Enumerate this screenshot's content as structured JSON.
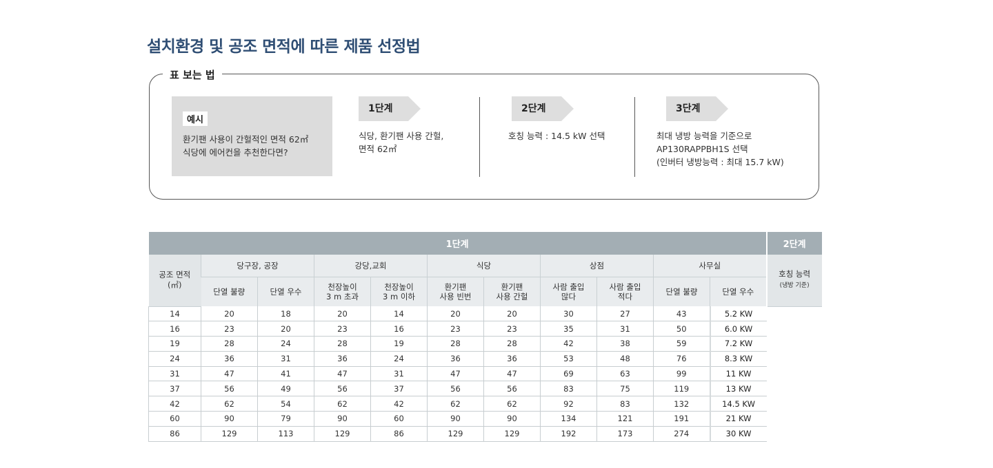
{
  "title": "설치환경 및 공조 면적에 따른 제품 선정법",
  "guide": {
    "label": "표 보는 법",
    "example_tag": "예시",
    "example_text": "환기팬 사용이 간헐적인 면적 62㎡\n식당에 에어컨을 추천한다면?",
    "steps": [
      {
        "tag": "1단계",
        "text": "식당, 환기팬 사용 간헐,\n면적 62㎡"
      },
      {
        "tag": "2단계",
        "text": "호칭 능력 : 14.5 kW 선택"
      },
      {
        "tag": "3단계",
        "text": "최대 냉방 능력을 기준으로\nAP130RAPPBH1S 선택\n(인버터 냉방능력 : 최대 15.7 kW)"
      }
    ]
  },
  "table": {
    "stage1_label": "1단계",
    "stage2_label": "2단계",
    "row_header": "공조 면적\n(㎡)",
    "groups": [
      "당구장, 공장",
      "강당,교회",
      "식당",
      "상점",
      "사무실"
    ],
    "subheaders": [
      "단열 불량",
      "단열 우수",
      "천장높이\n3 m 초과",
      "천장높이\n3 m 이하",
      "환기팬\n사용 빈번",
      "환기팬\n사용 간헐",
      "사람 출입\n많다",
      "사람 출입\n적다",
      "단열 불량",
      "단열 우수"
    ],
    "capacity_header": "호칭 능력",
    "capacity_sub": "(냉방 기준)",
    "rows": [
      {
        "v": [
          "14",
          "20",
          "18",
          "20",
          "14",
          "20",
          "20",
          "30",
          "27",
          "43"
        ],
        "kw": "5.2 KW"
      },
      {
        "v": [
          "16",
          "23",
          "20",
          "23",
          "16",
          "23",
          "23",
          "35",
          "31",
          "50"
        ],
        "kw": "6.0 KW"
      },
      {
        "v": [
          "19",
          "28",
          "24",
          "28",
          "19",
          "28",
          "28",
          "42",
          "38",
          "59"
        ],
        "kw": "7.2 KW"
      },
      {
        "v": [
          "24",
          "36",
          "31",
          "36",
          "24",
          "36",
          "36",
          "53",
          "48",
          "76"
        ],
        "kw": "8.3 KW"
      },
      {
        "v": [
          "31",
          "47",
          "41",
          "47",
          "31",
          "47",
          "47",
          "69",
          "63",
          "99"
        ],
        "kw": "11 KW"
      },
      {
        "v": [
          "37",
          "56",
          "49",
          "56",
          "37",
          "56",
          "56",
          "83",
          "75",
          "119"
        ],
        "kw": "13 KW"
      },
      {
        "v": [
          "42",
          "62",
          "54",
          "62",
          "42",
          "62",
          "62",
          "92",
          "83",
          "132"
        ],
        "kw": "14.5 KW"
      },
      {
        "v": [
          "60",
          "90",
          "79",
          "90",
          "60",
          "90",
          "90",
          "134",
          "121",
          "191"
        ],
        "kw": "21 KW"
      },
      {
        "v": [
          "86",
          "129",
          "113",
          "129",
          "86",
          "129",
          "129",
          "192",
          "173",
          "274"
        ],
        "kw": "30 KW"
      }
    ]
  }
}
